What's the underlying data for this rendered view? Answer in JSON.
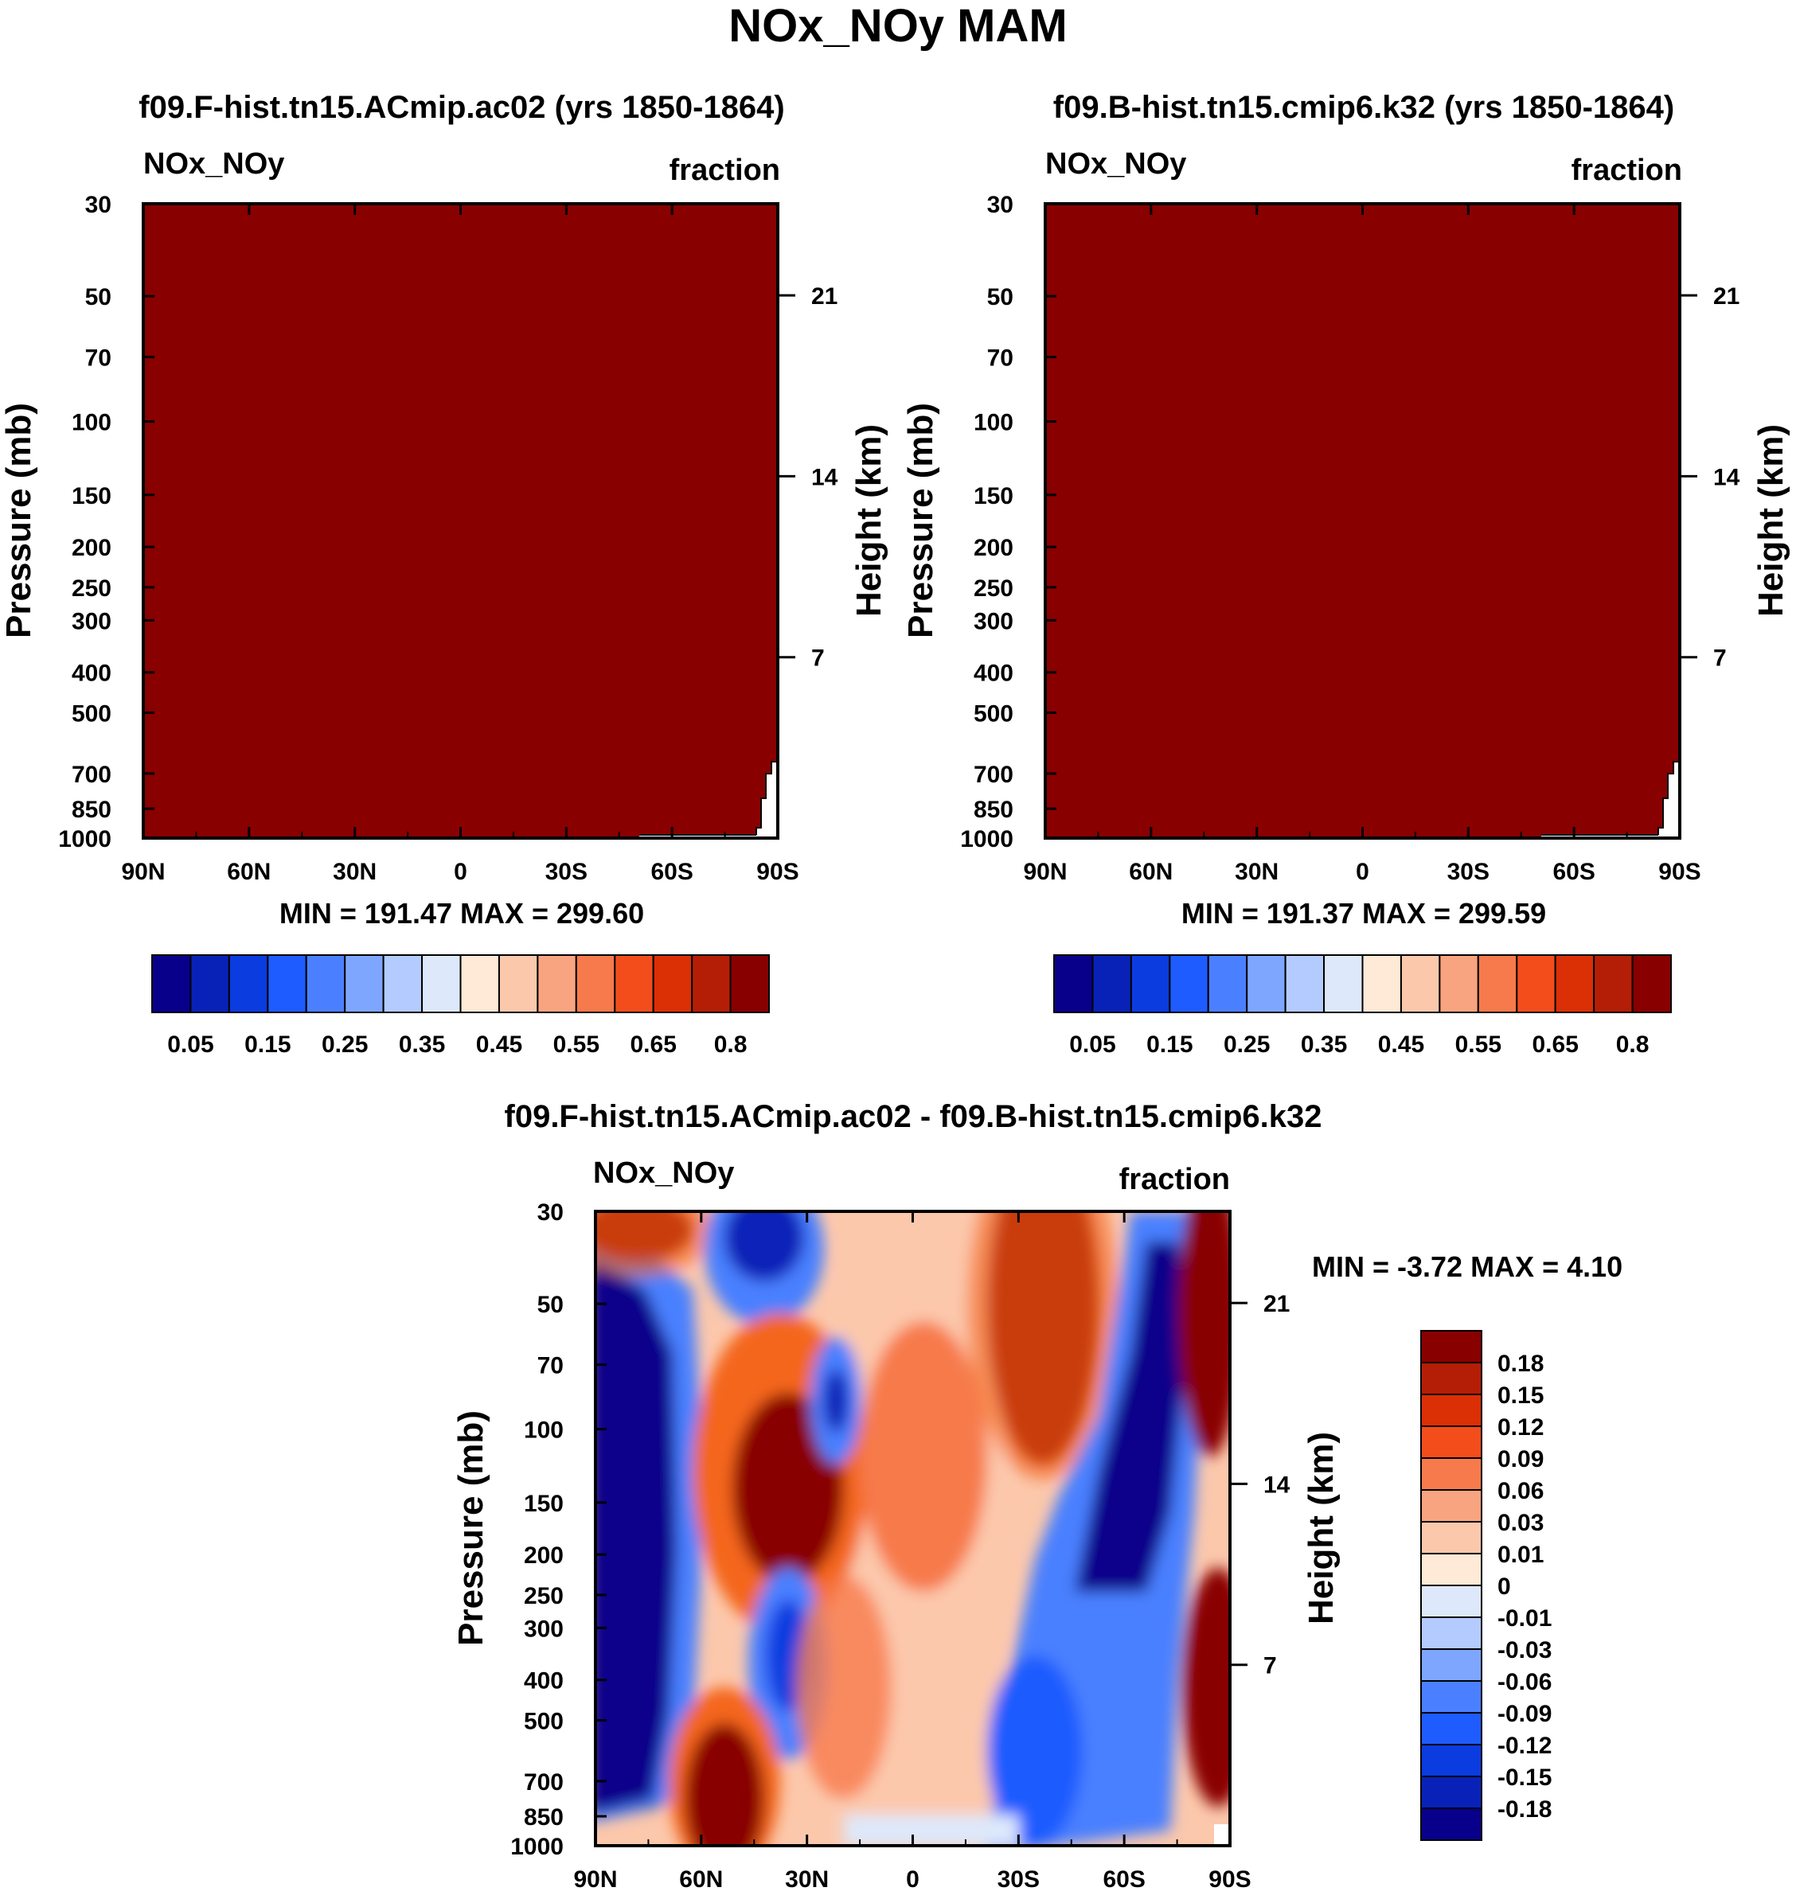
{
  "title": "NOx_NOy MAM",
  "chart_data": [
    {
      "type": "heatmap",
      "panel": "top-left",
      "title": "f09.F-hist.tn15.ACmip.ac02 (yrs 1850-1864)",
      "left_label": "NOx_NOy",
      "right_label": "fraction",
      "ylabel": "Pressure (mb)",
      "ylabel_right": "Height (km)",
      "x_ticks": [
        "90N",
        "60N",
        "30N",
        "0",
        "30S",
        "60S",
        "90S"
      ],
      "y_ticks": [
        30,
        50,
        70,
        100,
        150,
        200,
        250,
        300,
        400,
        500,
        700,
        850,
        1000
      ],
      "y_right_ticks": [
        21,
        14,
        7
      ],
      "ylim": [
        1000,
        30
      ],
      "fill_value": "> 0.8 everywhere",
      "stats": "MIN = 191.47  MAX = 299.60",
      "colorbar_labels": [
        "0.05",
        "0.15",
        "0.25",
        "0.35",
        "0.45",
        "0.55",
        "0.65",
        "0.8"
      ]
    },
    {
      "type": "heatmap",
      "panel": "top-right",
      "title": "f09.B-hist.tn15.cmip6.k32 (yrs 1850-1864)",
      "left_label": "NOx_NOy",
      "right_label": "fraction",
      "ylabel": "Pressure (mb)",
      "ylabel_right": "Height (km)",
      "x_ticks": [
        "90N",
        "60N",
        "30N",
        "0",
        "30S",
        "60S",
        "90S"
      ],
      "y_ticks": [
        30,
        50,
        70,
        100,
        150,
        200,
        250,
        300,
        400,
        500,
        700,
        850,
        1000
      ],
      "y_right_ticks": [
        21,
        14,
        7
      ],
      "ylim": [
        1000,
        30
      ],
      "fill_value": "> 0.8 everywhere",
      "stats": "MIN = 191.37  MAX = 299.59",
      "colorbar_labels": [
        "0.05",
        "0.15",
        "0.25",
        "0.35",
        "0.45",
        "0.55",
        "0.65",
        "0.8"
      ]
    },
    {
      "type": "heatmap",
      "panel": "bottom",
      "title": "f09.F-hist.tn15.ACmip.ac02 - f09.B-hist.tn15.cmip6.k32",
      "left_label": "NOx_NOy",
      "right_label": "fraction",
      "ylabel": "Pressure (mb)",
      "ylabel_right": "Height (km)",
      "x_ticks": [
        "90N",
        "60N",
        "30N",
        "0",
        "30S",
        "60S",
        "90S"
      ],
      "y_ticks": [
        30,
        50,
        70,
        100,
        150,
        200,
        250,
        300,
        400,
        500,
        700,
        850,
        1000
      ],
      "y_right_ticks": [
        21,
        14,
        7
      ],
      "ylim": [
        1000,
        30
      ],
      "stats": "MIN =  -3.72  MAX =   4.10",
      "colorbar_labels": [
        "0.18",
        "0.15",
        "0.12",
        "0.09",
        "0.06",
        "0.03",
        "0.01",
        "0",
        "-0.01",
        "-0.03",
        "-0.06",
        "-0.09",
        "-0.12",
        "-0.15",
        "-0.18"
      ]
    }
  ],
  "colors": {
    "scale16": [
      "#08008a",
      "#0822b8",
      "#0b3ce0",
      "#1f5cff",
      "#4a80ff",
      "#7ea6ff",
      "#b4cbff",
      "#dde9fb",
      "#feead6",
      "#fcc8ac",
      "#f9a480",
      "#f77a4c",
      "#f44d1c",
      "#db2f06",
      "#b41e06",
      "#890000"
    ],
    "diff16": [
      "#890000",
      "#b41e06",
      "#db2f06",
      "#f44d1c",
      "#f77a4c",
      "#f9a480",
      "#fcc8ac",
      "#feead6",
      "#dde9fb",
      "#b4cbff",
      "#7ea6ff",
      "#4a80ff",
      "#1f5cff",
      "#0b3ce0",
      "#0822b8",
      "#08008a"
    ]
  }
}
